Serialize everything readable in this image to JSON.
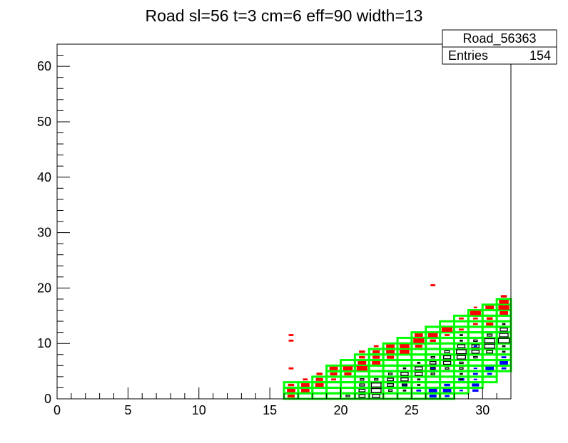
{
  "chart_data": {
    "type": "heatmap",
    "title": "Road sl=56 t=3 cm=6 eff=90 width=13",
    "xlabel": "",
    "ylabel": "",
    "xlim": [
      0,
      32
    ],
    "ylim": [
      0,
      64
    ],
    "x_ticks": [
      0,
      5,
      10,
      15,
      20,
      25,
      30
    ],
    "y_ticks": [
      0,
      10,
      20,
      30,
      40,
      50,
      60
    ],
    "grid": false,
    "stats_box": {
      "name": "Road_56363",
      "entries_label": "Entries",
      "entries_value": "154",
      "placement": "top-right"
    },
    "colors": {
      "road": "#00ff00",
      "red_series": "#ff0000",
      "blue_series": "#0000ff",
      "black_series": "#000000"
    },
    "road_columns": [
      {
        "x": 16,
        "ymin": 0,
        "ymax": 3
      },
      {
        "x": 17,
        "ymin": 0,
        "ymax": 3
      },
      {
        "x": 18,
        "ymin": 0,
        "ymax": 4
      },
      {
        "x": 19,
        "ymin": 0,
        "ymax": 6
      },
      {
        "x": 20,
        "ymin": 0,
        "ymax": 7
      },
      {
        "x": 21,
        "ymin": 0,
        "ymax": 8
      },
      {
        "x": 22,
        "ymin": 0,
        "ymax": 9
      },
      {
        "x": 23,
        "ymin": 0,
        "ymax": 10
      },
      {
        "x": 24,
        "ymin": 0,
        "ymax": 11
      },
      {
        "x": 25,
        "ymin": 0,
        "ymax": 12
      },
      {
        "x": 26,
        "ymin": 0,
        "ymax": 13
      },
      {
        "x": 27,
        "ymin": 0,
        "ymax": 14
      },
      {
        "x": 28,
        "ymin": 1,
        "ymax": 15
      },
      {
        "x": 29,
        "ymin": 2,
        "ymax": 16
      },
      {
        "x": 30,
        "ymin": 3,
        "ymax": 17
      },
      {
        "x": 31,
        "ymin": 5,
        "ymax": 18
      }
    ],
    "red_bins": [
      [
        16,
        0,
        0.6
      ],
      [
        16,
        1,
        0.7
      ],
      [
        16,
        2,
        0.5
      ],
      [
        16,
        5,
        0.4
      ],
      [
        16,
        10,
        0.4
      ],
      [
        16,
        11,
        0.4
      ],
      [
        17,
        1,
        0.7
      ],
      [
        17,
        2,
        0.7
      ],
      [
        17,
        3,
        0.4
      ],
      [
        18,
        2,
        0.7
      ],
      [
        18,
        3,
        0.6
      ],
      [
        18,
        4,
        0.5
      ],
      [
        19,
        3,
        0.4
      ],
      [
        19,
        4,
        0.6
      ],
      [
        19,
        5,
        0.7
      ],
      [
        20,
        4,
        0.6
      ],
      [
        20,
        5,
        0.8
      ],
      [
        21,
        5,
        0.9
      ],
      [
        21,
        6,
        0.7
      ],
      [
        21,
        7,
        0.5
      ],
      [
        21,
        8,
        0.5
      ],
      [
        22,
        6,
        0.7
      ],
      [
        22,
        7,
        0.6
      ],
      [
        22,
        8,
        0.6
      ],
      [
        22,
        9,
        0.4
      ],
      [
        23,
        7,
        0.6
      ],
      [
        23,
        8,
        0.7
      ],
      [
        23,
        9,
        0.7
      ],
      [
        24,
        8,
        0.8
      ],
      [
        24,
        9,
        0.8
      ],
      [
        25,
        9,
        0.6
      ],
      [
        25,
        10,
        0.9
      ],
      [
        25,
        11,
        0.7
      ],
      [
        26,
        20,
        0.4
      ],
      [
        26,
        10,
        0.5
      ],
      [
        26,
        11,
        0.8
      ],
      [
        27,
        11,
        0.4
      ],
      [
        27,
        12,
        0.9
      ],
      [
        28,
        12,
        0.4
      ],
      [
        28,
        14,
        0.4
      ],
      [
        29,
        13,
        0.4
      ],
      [
        29,
        14,
        0.4
      ],
      [
        29,
        15,
        0.9
      ],
      [
        29,
        16,
        0.3
      ],
      [
        30,
        13,
        0.6
      ],
      [
        30,
        14,
        0.5
      ],
      [
        30,
        16,
        0.7
      ],
      [
        31,
        15,
        0.7
      ],
      [
        31,
        16,
        0.9
      ],
      [
        31,
        17,
        0.8
      ],
      [
        31,
        18,
        0.5
      ]
    ],
    "black_bins": [
      [
        20,
        0,
        0.3
      ],
      [
        21,
        0,
        0.5
      ],
      [
        21,
        1,
        0.5
      ],
      [
        21,
        2,
        0.4
      ],
      [
        21,
        3,
        0.3
      ],
      [
        22,
        0,
        0.6
      ],
      [
        22,
        1,
        0.8
      ],
      [
        22,
        2,
        0.8
      ],
      [
        22,
        3,
        0.3
      ],
      [
        23,
        1,
        0.3
      ],
      [
        23,
        2,
        0.5
      ],
      [
        23,
        3,
        0.5
      ],
      [
        23,
        4,
        0.3
      ],
      [
        24,
        1,
        0.2
      ],
      [
        24,
        2,
        0.4
      ],
      [
        24,
        3,
        0.6
      ],
      [
        24,
        4,
        0.6
      ],
      [
        24,
        5,
        0.2
      ],
      [
        25,
        2,
        0.2
      ],
      [
        25,
        3,
        0.2
      ],
      [
        25,
        4,
        0.6
      ],
      [
        25,
        5,
        0.6
      ],
      [
        25,
        6,
        0.2
      ],
      [
        26,
        4,
        0.3
      ],
      [
        26,
        5,
        0.4
      ],
      [
        26,
        6,
        0.5
      ],
      [
        26,
        7,
        0.3
      ],
      [
        27,
        5,
        0.3
      ],
      [
        27,
        6,
        0.6
      ],
      [
        27,
        7,
        0.6
      ],
      [
        27,
        8,
        0.4
      ],
      [
        28,
        3,
        0.2
      ],
      [
        28,
        4,
        0.2
      ],
      [
        28,
        5,
        0.3
      ],
      [
        28,
        6,
        0.3
      ],
      [
        28,
        7,
        0.7
      ],
      [
        28,
        8,
        0.8
      ],
      [
        28,
        9,
        0.6
      ],
      [
        28,
        10,
        0.2
      ],
      [
        28,
        11,
        0.2
      ],
      [
        29,
        7,
        0.3
      ],
      [
        29,
        8,
        0.6
      ],
      [
        29,
        9,
        0.6
      ],
      [
        29,
        10,
        0.3
      ],
      [
        30,
        8,
        0.5
      ],
      [
        30,
        9,
        0.8
      ],
      [
        30,
        10,
        0.8
      ],
      [
        30,
        11,
        0.4
      ],
      [
        31,
        8,
        0.2
      ],
      [
        31,
        9,
        0.2
      ],
      [
        31,
        10,
        0.9
      ],
      [
        31,
        11,
        0.7
      ],
      [
        31,
        12,
        0.6
      ],
      [
        31,
        13,
        0.2
      ]
    ],
    "blue_bins": [
      [
        24,
        2,
        0.4
      ],
      [
        25,
        1,
        0.4
      ],
      [
        26,
        0,
        0.6
      ],
      [
        26,
        1,
        0.7
      ],
      [
        26,
        5,
        0.4
      ],
      [
        27,
        0,
        0.4
      ],
      [
        27,
        1,
        0.7
      ],
      [
        27,
        2,
        0.5
      ],
      [
        28,
        1,
        0.3
      ],
      [
        28,
        3,
        0.5
      ],
      [
        29,
        1,
        0.5
      ],
      [
        29,
        2,
        0.6
      ],
      [
        29,
        3,
        0.3
      ],
      [
        29,
        4,
        0.4
      ],
      [
        29,
        5,
        0.3
      ],
      [
        29,
        9,
        0.3
      ],
      [
        30,
        4,
        0.4
      ],
      [
        30,
        5,
        0.7
      ],
      [
        31,
        5,
        0.4
      ],
      [
        31,
        6,
        0.7
      ],
      [
        31,
        7,
        0.4
      ]
    ]
  }
}
